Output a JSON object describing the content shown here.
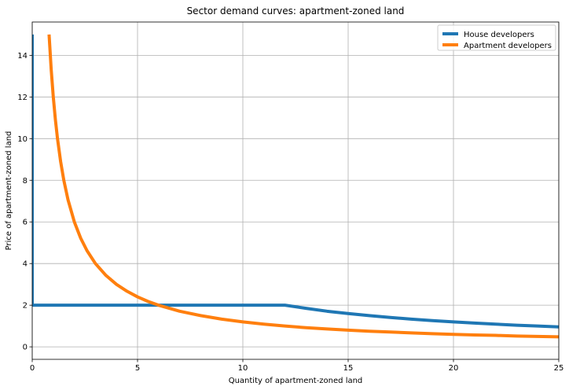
{
  "chart_data": {
    "type": "line",
    "title": "Sector demand curves: apartment-zoned land",
    "xlabel": "Quantity of apartment-zoned land",
    "ylabel": "Price of apartment-zoned land",
    "xlim": [
      0,
      25
    ],
    "ylim": [
      -0.6,
      15.6
    ],
    "xticks": [
      "0",
      "5",
      "10",
      "15",
      "20",
      "25"
    ],
    "xtick_values": [
      0,
      5,
      10,
      15,
      20,
      25
    ],
    "yticks": [
      "0",
      "2",
      "4",
      "6",
      "8",
      "10",
      "12",
      "14"
    ],
    "ytick_values": [
      0,
      2,
      4,
      6,
      8,
      10,
      12,
      14
    ],
    "grid": true,
    "legend_position": "top-right",
    "series": [
      {
        "name": "House developers",
        "color": "#1f77b4",
        "x": [
          0,
          0,
          0.5,
          2,
          4,
          6,
          8,
          10,
          12,
          13,
          14,
          15,
          16,
          17,
          18,
          19,
          20,
          21,
          22,
          23,
          24,
          25
        ],
        "y": [
          15,
          2,
          2,
          2,
          2,
          2,
          2,
          2,
          2,
          1.85,
          1.71,
          1.6,
          1.5,
          1.41,
          1.33,
          1.26,
          1.2,
          1.14,
          1.09,
          1.04,
          1.0,
          0.96
        ]
      },
      {
        "name": "Apartment developers",
        "color": "#ff7f0e",
        "x": [
          0.8,
          0.9,
          1.0,
          1.1,
          1.2,
          1.35,
          1.5,
          1.7,
          2.0,
          2.3,
          2.6,
          3.0,
          3.5,
          4.0,
          4.5,
          5.0,
          5.5,
          6.0,
          7.0,
          8.0,
          9.0,
          10.0,
          11.0,
          12.0,
          13.0,
          14.0,
          15.0,
          16.0,
          17.0,
          18.0,
          19.0,
          20.0,
          21.0,
          22.0,
          23.0,
          24.0,
          25.0
        ],
        "y": [
          15.0,
          13.33,
          12.0,
          10.91,
          10.0,
          8.89,
          8.0,
          7.06,
          6.0,
          5.22,
          4.62,
          4.0,
          3.43,
          3.0,
          2.67,
          2.4,
          2.18,
          2.0,
          1.71,
          1.5,
          1.33,
          1.2,
          1.09,
          1.0,
          0.92,
          0.86,
          0.8,
          0.75,
          0.71,
          0.67,
          0.63,
          0.6,
          0.57,
          0.55,
          0.52,
          0.5,
          0.48
        ]
      }
    ]
  }
}
